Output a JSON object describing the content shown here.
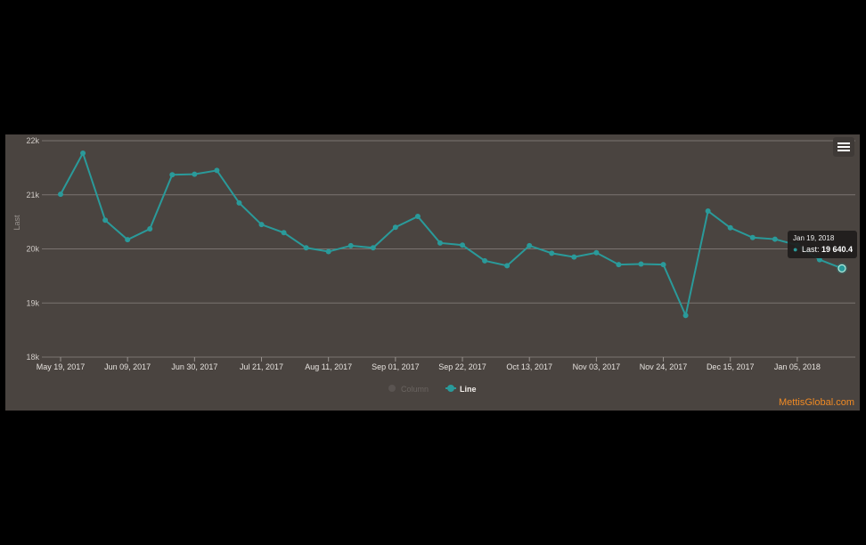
{
  "chart_data": {
    "type": "line",
    "ylabel": "Last",
    "xlabel": "",
    "ylim": [
      18000,
      22000
    ],
    "y_ticks": [
      18000,
      19000,
      20000,
      21000,
      22000
    ],
    "y_tick_labels": [
      "18k",
      "19k",
      "20k",
      "21k",
      "22k"
    ],
    "x_tick_labels": [
      "May 19, 2017",
      "Jun 09, 2017",
      "Jun 30, 2017",
      "Jul 21, 2017",
      "Aug 11, 2017",
      "Sep 01, 2017",
      "Sep 22, 2017",
      "Oct 13, 2017",
      "Nov 03, 2017",
      "Nov 24, 2017",
      "Dec 15, 2017",
      "Jan 05, 2018"
    ],
    "x_tick_indices": [
      0,
      3,
      6,
      9,
      12,
      15,
      18,
      21,
      24,
      27,
      30,
      33
    ],
    "grid": true,
    "series": [
      {
        "name": "Line",
        "color": "#2a9a9a",
        "x": [
          "May 19, 2017",
          "May 26, 2017",
          "Jun 02, 2017",
          "Jun 09, 2017",
          "Jun 16, 2017",
          "Jun 23, 2017",
          "Jun 30, 2017",
          "Jul 07, 2017",
          "Jul 14, 2017",
          "Jul 21, 2017",
          "Jul 28, 2017",
          "Aug 04, 2017",
          "Aug 11, 2017",
          "Aug 18, 2017",
          "Aug 25, 2017",
          "Sep 01, 2017",
          "Sep 08, 2017",
          "Sep 15, 2017",
          "Sep 22, 2017",
          "Sep 29, 2017",
          "Oct 06, 2017",
          "Oct 13, 2017",
          "Oct 20, 2017",
          "Oct 27, 2017",
          "Nov 03, 2017",
          "Nov 10, 2017",
          "Nov 17, 2017",
          "Nov 24, 2017",
          "Dec 01, 2017",
          "Dec 08, 2017",
          "Dec 15, 2017",
          "Dec 22, 2017",
          "Dec 29, 2017",
          "Jan 05, 2018",
          "Jan 12, 2018",
          "Jan 19, 2018"
        ],
        "values": [
          21010,
          21770,
          20530,
          20170,
          20370,
          21370,
          21380,
          21450,
          20850,
          20450,
          20300,
          20020,
          19950,
          20060,
          20020,
          20400,
          20600,
          20110,
          20070,
          19780,
          19690,
          20060,
          19920,
          19850,
          19930,
          19710,
          19720,
          19710,
          18770,
          20700,
          20390,
          20210,
          20180,
          20070,
          19800,
          19640.4
        ]
      }
    ],
    "legend": {
      "placement": "bottom-center",
      "items": [
        {
          "name": "Column",
          "color": "#5a5451",
          "enabled": false
        },
        {
          "name": "Line",
          "color": "#2a9a9a",
          "enabled": true
        }
      ]
    },
    "tooltip": {
      "date": "Jan 19, 2018",
      "label": "Last:",
      "value": "19 640.4"
    }
  },
  "credit": "MettisGlobal.com",
  "menu_icon": "hamburger-menu-icon"
}
